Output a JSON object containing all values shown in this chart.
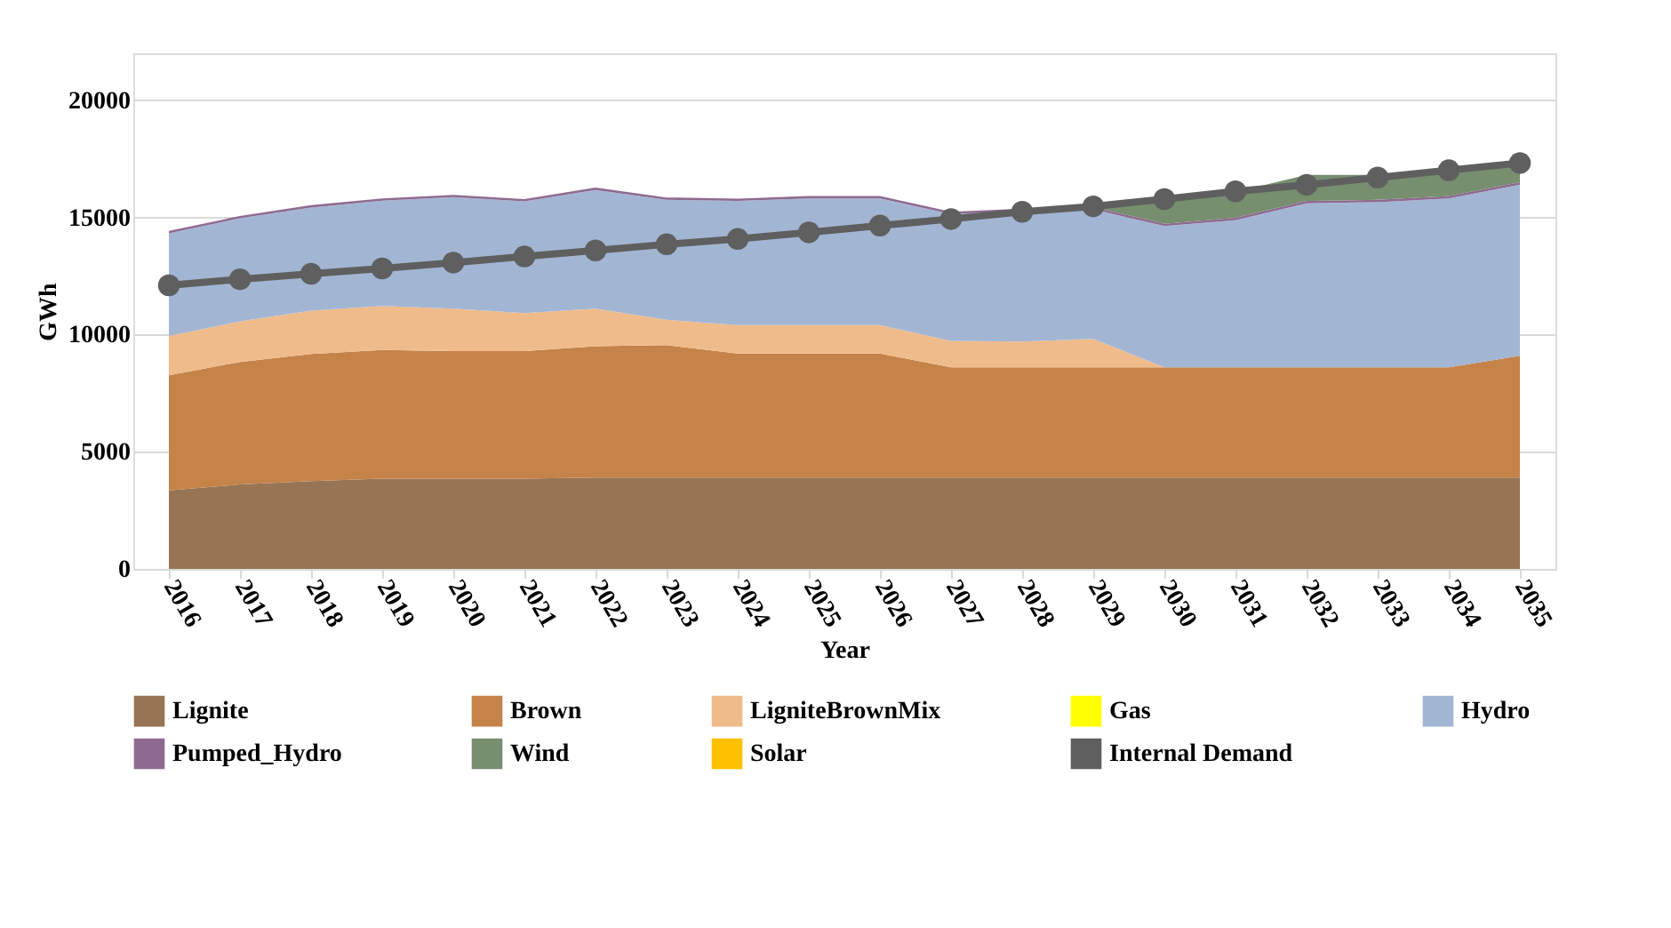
{
  "chart_data": {
    "type": "area",
    "stacked": true,
    "xlabel": "Year",
    "ylabel": "GWh",
    "categories": [
      "2016",
      "2017",
      "2018",
      "2019",
      "2020",
      "2021",
      "2022",
      "2023",
      "2024",
      "2025",
      "2026",
      "2027",
      "2028",
      "2029",
      "2030",
      "2031",
      "2032",
      "2033",
      "2034",
      "2035"
    ],
    "ylim": [
      0,
      22000
    ],
    "yticks": [
      0,
      {
        "value": 5000,
        "label": "5000"
      },
      {
        "value": 10000,
        "label": "10000"
      },
      {
        "value": 15000,
        "label": "15000"
      },
      {
        "value": 20000,
        "label": "20000"
      }
    ],
    "grid": "y",
    "legend": "bottom",
    "series": [
      {
        "name": "Lignite",
        "color": "#967454",
        "values": [
          3350,
          3600,
          3750,
          3850,
          3850,
          3850,
          3900,
          3900,
          3900,
          3900,
          3900,
          3900,
          3900,
          3900,
          3900,
          3900,
          3900,
          3900,
          3900,
          3900
        ]
      },
      {
        "name": "Brown",
        "color": "#c5834a",
        "values": [
          4910,
          5230,
          5420,
          5490,
          5440,
          5440,
          5600,
          5650,
          5290,
          5290,
          5290,
          4700,
          4700,
          4700,
          4700,
          4700,
          4700,
          4700,
          4700,
          5190
        ]
      },
      {
        "name": "LigniteBrownMix",
        "color": "#f0bb8b",
        "values": [
          1680,
          1730,
          1850,
          1880,
          1810,
          1620,
          1600,
          1080,
          1210,
          1210,
          1210,
          1130,
          1100,
          1210,
          0,
          0,
          0,
          0,
          0,
          0
        ]
      },
      {
        "name": "Gas",
        "color": "#ffff00",
        "values": [
          null,
          null,
          null,
          null,
          null,
          null,
          null,
          null,
          null,
          null,
          null,
          null,
          null,
          null,
          null,
          null,
          null,
          null,
          null,
          null
        ]
      },
      {
        "name": "Hydro",
        "color": "#a2b6d4",
        "values": [
          4380,
          4400,
          4400,
          4490,
          4760,
          4770,
          5070,
          5120,
          5300,
          5410,
          5410,
          5410,
          5570,
          5530,
          6030,
          6280,
          7000,
          7050,
          7210,
          7310
        ]
      },
      {
        "name": "Pumped_Hydro",
        "color": "#8e6a91",
        "values": [
          100,
          100,
          100,
          100,
          100,
          100,
          100,
          100,
          100,
          100,
          100,
          100,
          100,
          100,
          100,
          100,
          100,
          100,
          100,
          100
        ]
      },
      {
        "name": "Wind",
        "color": "#778e6f",
        "values": [
          0,
          0,
          0,
          0,
          0,
          0,
          0,
          0,
          0,
          0,
          0,
          0,
          0,
          0,
          1050,
          1100,
          1110,
          1060,
          1160,
          870
        ]
      },
      {
        "name": "Solar",
        "color": "#ffc000",
        "values": [
          null,
          null,
          null,
          null,
          null,
          null,
          null,
          null,
          null,
          null,
          null,
          null,
          null,
          null,
          null,
          null,
          null,
          null,
          null,
          null
        ]
      },
      {
        "name": "Internal Demand",
        "color": "#5f5f5f",
        "type": "line",
        "marker": "circle",
        "values": [
          12100,
          12360,
          12590,
          12820,
          13070,
          13330,
          13590,
          13850,
          14080,
          14360,
          14650,
          14930,
          15240,
          15470,
          15780,
          16110,
          16390,
          16700,
          17010,
          17320
        ]
      }
    ]
  }
}
